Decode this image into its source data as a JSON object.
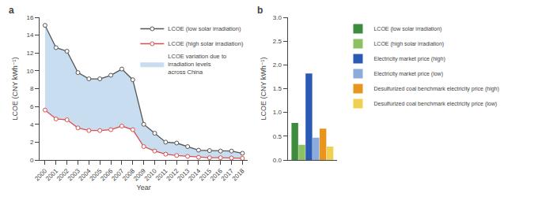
{
  "chart_data": [
    {
      "type": "line",
      "annotations": [
        "a"
      ],
      "xlabel": "Year",
      "ylabel": "LCOE (CNY kWh⁻¹)",
      "x": [
        2000,
        2001,
        2002,
        2003,
        2004,
        2005,
        2006,
        2007,
        2008,
        2009,
        2010,
        2011,
        2012,
        2013,
        2014,
        2015,
        2016,
        2017,
        2018
      ],
      "xlim": [
        1999.5,
        2018.5
      ],
      "xticks": [
        2000,
        2001,
        2002,
        2003,
        2004,
        2005,
        2006,
        2007,
        2008,
        2009,
        2010,
        2011,
        2012,
        2013,
        2014,
        2015,
        2016,
        2017,
        2018
      ],
      "ylim": [
        0,
        16
      ],
      "yticks": [
        0,
        2,
        4,
        6,
        8,
        10,
        12,
        14,
        16
      ],
      "grid": false,
      "legend": "upper right",
      "marker": "circle",
      "series": [
        {
          "name": "LCOE (low solar irradiation)",
          "color": "#555555",
          "values": [
            15.1,
            12.6,
            12.2,
            9.8,
            9.1,
            9.1,
            9.5,
            10.2,
            9.0,
            4.0,
            3.0,
            2.0,
            1.9,
            1.5,
            1.1,
            1.05,
            1.0,
            1.0,
            0.75
          ]
        },
        {
          "name": "LCOE (high solar irradiation)",
          "color": "#d94f4f",
          "values": [
            5.6,
            4.6,
            4.5,
            3.6,
            3.3,
            3.3,
            3.4,
            3.8,
            3.4,
            1.5,
            1.0,
            0.65,
            0.5,
            0.4,
            0.3,
            0.25,
            0.25,
            0.22,
            0.18
          ]
        },
        {
          "name": "LCOE variation due to\nirradiation levels\nacross China",
          "type": "area",
          "color": "#c8ddf0"
        }
      ]
    },
    {
      "type": "bar",
      "annotations": [
        "b"
      ],
      "ylabel": "LCOE (CNY kWh⁻¹)",
      "categories": [
        null
      ],
      "ylim": [
        0,
        3.0
      ],
      "yticks": [
        {
          "value": 0,
          "label": "0.0"
        },
        0.5,
        {
          "value": 1,
          "label": "1.0"
        },
        1.5,
        {
          "value": 2,
          "label": "2.0"
        },
        2.5,
        {
          "value": 3,
          "label": "3.0"
        }
      ],
      "grid": false,
      "legend": "upper right",
      "tick_labels": "y",
      "series": [
        {
          "name": "LCOE (low solar irradiation)",
          "color": "#3d8c3d",
          "values": [
            0.78
          ]
        },
        {
          "name": "LCOE (high solar irradiation)",
          "color": "#8cc060",
          "values": [
            0.32
          ]
        },
        {
          "name": "Electricity market price (high)",
          "color": "#2b5ab5",
          "values": [
            1.82
          ]
        },
        {
          "name": "Electricity market price (low)",
          "color": "#8aabdb",
          "values": [
            0.47
          ]
        },
        {
          "name": "Desulfurized coal benchmark electricity price (high)",
          "color": "#e89520",
          "values": [
            0.66
          ]
        },
        {
          "name": "Desulfurized coal benchmark electricity price (low)",
          "color": "#f0d050",
          "values": [
            0.28
          ]
        }
      ]
    }
  ]
}
